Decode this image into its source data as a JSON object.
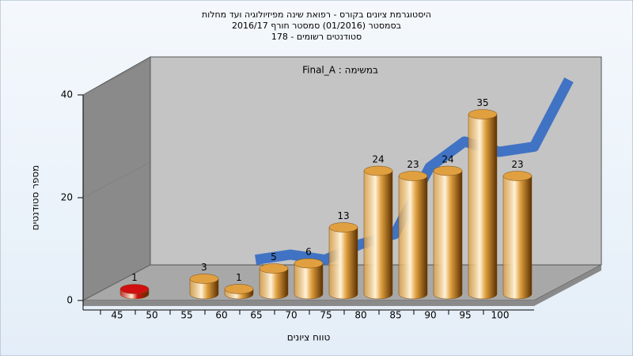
{
  "chart_data": {
    "type": "bar3d",
    "title": [
      "היסטוגרמת ציונים בקורס - רפואת שינה מפיזיולוגיה ועד מחלות",
      "בסמסטר  (01/2016)  סמסטר חורף 2016/17",
      "סטודנטים רשומים - 178"
    ],
    "annotation": "במשימה : Final_A",
    "x_label": "טווח ציונים",
    "y_label": "מספר סטודנטים",
    "categories": [
      45,
      50,
      55,
      60,
      65,
      70,
      75,
      80,
      85,
      90,
      95,
      100
    ],
    "values": [
      1,
      null,
      3,
      1,
      5,
      6,
      13,
      24,
      23,
      24,
      35,
      23
    ],
    "colors": [
      "#d01010",
      null,
      "#e0a040",
      "#e0a040",
      "#e0a040",
      "#e0a040",
      "#e0a040",
      "#e0a040",
      "#e0a040",
      "#e0a040",
      "#e0a040",
      "#e0a040"
    ],
    "trend": [
      null,
      null,
      1,
      2,
      1,
      4,
      6,
      19,
      24,
      22,
      23,
      36
    ],
    "trend_color": "#3a6fc4",
    "ylim": [
      0,
      40
    ],
    "yticks": [
      0,
      20,
      40
    ]
  }
}
